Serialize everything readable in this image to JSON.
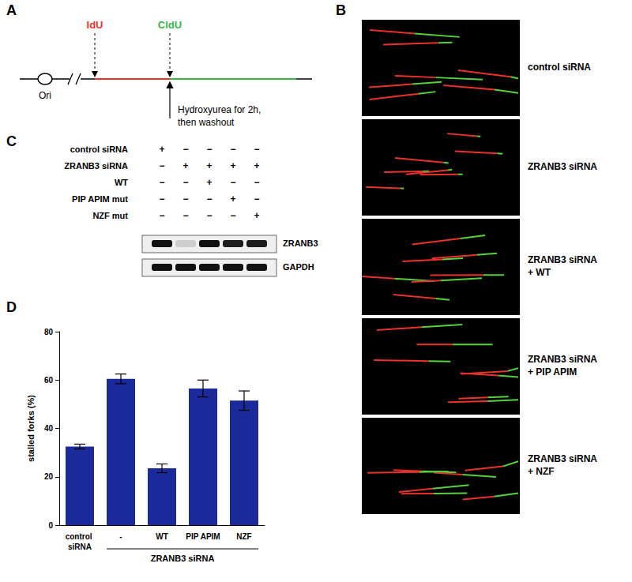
{
  "panels": {
    "A": {
      "label": "A",
      "origin": "Ori",
      "first_label": "IdU",
      "second_label": "CldU",
      "treatment": [
        "Hydroxyurea for 2h,",
        "then washout"
      ]
    },
    "B": {
      "label": "B",
      "images": [
        {
          "label": [
            "control siRNA"
          ]
        },
        {
          "label": [
            "ZRANB3 siRNA"
          ]
        },
        {
          "label": [
            "ZRANB3 siRNA",
            "+ WT"
          ]
        },
        {
          "label": [
            "ZRANB3 siRNA",
            "+ PIP APIM"
          ]
        },
        {
          "label": [
            "ZRANB3 siRNA",
            "+ NZF"
          ]
        }
      ]
    },
    "C": {
      "label": "C",
      "rows": [
        {
          "label": "control siRNA",
          "marks": [
            "+",
            "−",
            "−",
            "−",
            "−"
          ]
        },
        {
          "label": "ZRANB3 siRNA",
          "marks": [
            "−",
            "+",
            "+",
            "+",
            "+"
          ]
        },
        {
          "label": "WT",
          "marks": [
            "−",
            "−",
            "+",
            "−",
            "−"
          ]
        },
        {
          "label": "PIP APIM mut",
          "marks": [
            "−",
            "−",
            "−",
            "+",
            "−"
          ]
        },
        {
          "label": "NZF mut",
          "marks": [
            "−",
            "−",
            "−",
            "−",
            "+"
          ]
        }
      ],
      "blots": [
        {
          "label": "ZRANB3",
          "intensity": [
            1,
            0.15,
            1,
            0.95,
            0.95
          ]
        },
        {
          "label": "GAPDH",
          "intensity": [
            1,
            1,
            1,
            1,
            1
          ]
        }
      ]
    }
  },
  "chart_data": {
    "type": "bar",
    "panel_label": "D",
    "categories": [
      "control siRNA",
      "-",
      "WT",
      "PIP APIM",
      "NZF"
    ],
    "values": [
      32.5,
      60.5,
      23.5,
      56.5,
      51.5
    ],
    "errors": [
      1,
      2,
      1.8,
      3.5,
      4
    ],
    "color": "#1a2a9a",
    "y_label": "stalled forks (%)",
    "ylim": [
      0,
      80
    ],
    "yticks": [
      0,
      20,
      40,
      60,
      80
    ],
    "grid": false,
    "group": {
      "label": "ZRANB3 siRNA",
      "categories": [
        "-",
        "WT",
        "PIP APIM",
        "NZF"
      ]
    }
  }
}
